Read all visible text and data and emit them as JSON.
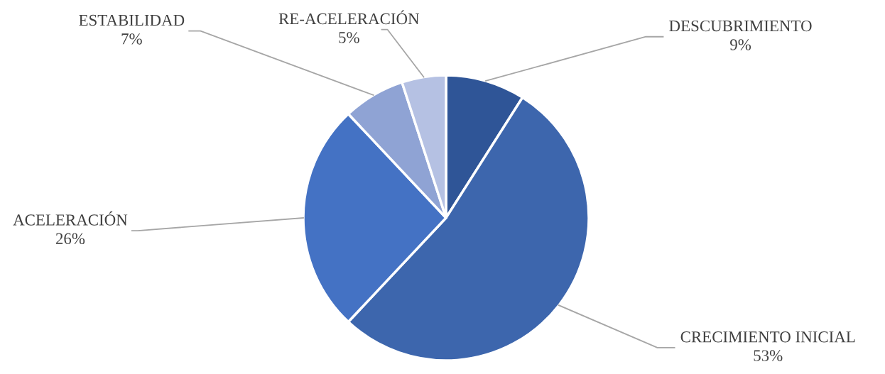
{
  "chart_data": {
    "type": "pie",
    "categories": [
      "DESCUBRIMIENTO",
      "CRECIMIENTO INICIAL",
      "ACELERACIÓN",
      "ESTABILIDAD",
      "RE-ACELERACIÓN"
    ],
    "values": [
      9,
      53,
      26,
      7,
      5
    ],
    "colors": [
      "#2f5597",
      "#3d66ad",
      "#4472c4",
      "#8fa3d4",
      "#b5c1e3"
    ],
    "value_labels": [
      "9%",
      "53%",
      "26%",
      "7%",
      "5%"
    ]
  }
}
